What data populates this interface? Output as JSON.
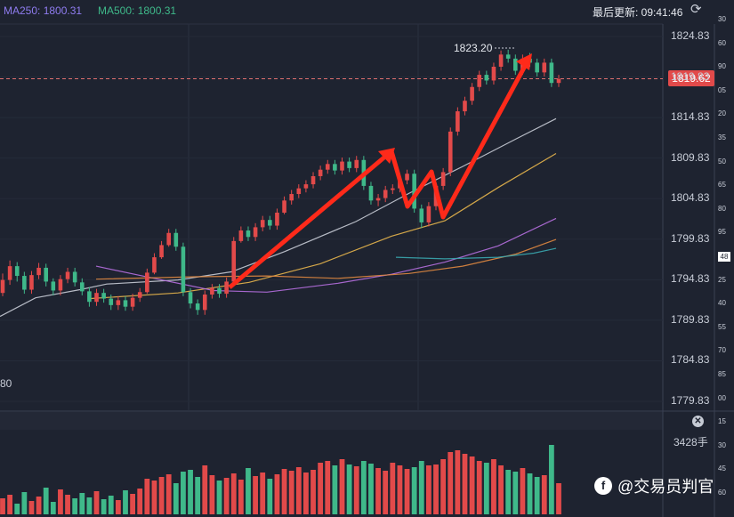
{
  "header": {
    "ma250_label": "MA250: 1800.31",
    "ma500_label": "MA500: 1800.31",
    "update_label": "最后更新: 09:41:46"
  },
  "current_price": "1819.62",
  "peak_annotation": "1823.20",
  "left_label": "80",
  "volume_max_label": "3428手",
  "watermark": "@交易员判官",
  "far_axis_labels": [
    "30",
    "60",
    "90",
    "05",
    "20",
    "35",
    "50",
    "65",
    "80",
    "95",
    "48",
    "25",
    "40",
    "55",
    "70",
    "85",
    "00",
    "15",
    "30",
    "45",
    "60"
  ],
  "colors": {
    "background": "#1e2330",
    "up": "#e24a4a",
    "down": "#3fb98a",
    "ma_white": "#c8ccd6",
    "ma_yellow": "#e8b64c",
    "ma_purple": "#b66fe0",
    "ma_orange": "#e08840",
    "ma_teal": "#3aa8b0",
    "arrow": "#ff2a1a"
  },
  "chart_data": {
    "type": "candlestick",
    "y_ticks": [
      "1824.83",
      "1819.83",
      "1814.83",
      "1809.83",
      "1804.83",
      "1799.83",
      "1794.83",
      "1789.83",
      "1784.83",
      "1779.83"
    ],
    "ylim": [
      1777.8,
      1829.1
    ],
    "candles": [
      [
        1793.2,
        1794.8,
        1792.8,
        1795.6
      ],
      [
        1794.8,
        1796.5,
        1794.2,
        1797.2
      ],
      [
        1796.5,
        1795.3,
        1794.6,
        1797.0
      ],
      [
        1795.3,
        1793.6,
        1793.1,
        1795.8
      ],
      [
        1793.6,
        1795.4,
        1793.1,
        1795.9
      ],
      [
        1795.4,
        1796.3,
        1794.9,
        1796.9
      ],
      [
        1796.3,
        1794.6,
        1794.0,
        1796.8
      ],
      [
        1794.6,
        1793.5,
        1792.9,
        1795.0
      ],
      [
        1793.5,
        1794.9,
        1792.9,
        1795.4
      ],
      [
        1794.9,
        1795.8,
        1794.4,
        1796.3
      ],
      [
        1795.8,
        1794.5,
        1794.0,
        1796.3
      ],
      [
        1794.5,
        1793.4,
        1792.9,
        1795.0
      ],
      [
        1793.4,
        1792.1,
        1791.5,
        1793.9
      ],
      [
        1792.1,
        1793.2,
        1791.6,
        1793.7
      ],
      [
        1793.2,
        1792.5,
        1792.0,
        1793.7
      ],
      [
        1792.5,
        1791.7,
        1791.1,
        1793.0
      ],
      [
        1791.7,
        1792.3,
        1791.1,
        1792.8
      ],
      [
        1792.3,
        1791.5,
        1791.0,
        1792.8
      ],
      [
        1791.5,
        1792.6,
        1791.0,
        1793.1
      ],
      [
        1792.6,
        1793.3,
        1792.1,
        1793.8
      ],
      [
        1793.3,
        1795.7,
        1793.1,
        1796.2
      ],
      [
        1795.7,
        1797.6,
        1795.5,
        1798.1
      ],
      [
        1797.6,
        1799.1,
        1797.4,
        1799.6
      ],
      [
        1799.1,
        1800.6,
        1798.9,
        1801.1
      ],
      [
        1800.6,
        1798.9,
        1798.4,
        1801.1
      ],
      [
        1798.9,
        1793.3,
        1792.8,
        1799.4
      ],
      [
        1793.3,
        1791.9,
        1791.3,
        1793.8
      ],
      [
        1791.9,
        1791.1,
        1790.5,
        1792.4
      ],
      [
        1791.1,
        1793.0,
        1790.5,
        1793.5
      ],
      [
        1793.0,
        1793.8,
        1792.5,
        1794.3
      ],
      [
        1793.8,
        1793.1,
        1792.6,
        1794.3
      ],
      [
        1793.1,
        1794.6,
        1792.6,
        1795.1
      ],
      [
        1794.6,
        1799.6,
        1794.4,
        1800.1
      ],
      [
        1799.6,
        1800.9,
        1799.4,
        1801.4
      ],
      [
        1800.9,
        1800.1,
        1799.6,
        1801.4
      ],
      [
        1800.1,
        1801.3,
        1799.6,
        1801.8
      ],
      [
        1801.3,
        1802.2,
        1800.8,
        1802.7
      ],
      [
        1802.2,
        1801.5,
        1801.0,
        1802.7
      ],
      [
        1801.5,
        1803.1,
        1801.0,
        1803.6
      ],
      [
        1803.1,
        1804.6,
        1802.9,
        1805.1
      ],
      [
        1804.6,
        1805.4,
        1804.1,
        1805.9
      ],
      [
        1805.4,
        1806.1,
        1804.9,
        1806.6
      ],
      [
        1806.1,
        1806.6,
        1805.6,
        1807.1
      ],
      [
        1806.6,
        1807.6,
        1806.1,
        1808.1
      ],
      [
        1807.6,
        1808.4,
        1807.1,
        1808.9
      ],
      [
        1808.4,
        1809.1,
        1807.9,
        1809.6
      ],
      [
        1809.1,
        1808.3,
        1807.8,
        1809.6
      ],
      [
        1808.3,
        1809.4,
        1807.8,
        1809.9
      ],
      [
        1809.4,
        1808.6,
        1808.1,
        1809.9
      ],
      [
        1808.6,
        1809.6,
        1808.1,
        1810.1
      ],
      [
        1809.6,
        1806.4,
        1805.9,
        1810.1
      ],
      [
        1806.4,
        1804.6,
        1804.1,
        1806.9
      ],
      [
        1804.6,
        1804.9,
        1803.9,
        1805.4
      ],
      [
        1804.9,
        1805.9,
        1804.4,
        1806.4
      ],
      [
        1805.9,
        1806.1,
        1805.4,
        1806.6
      ],
      [
        1806.1,
        1807.1,
        1805.6,
        1807.6
      ],
      [
        1807.1,
        1807.9,
        1806.6,
        1808.4
      ],
      [
        1807.9,
        1803.6,
        1803.1,
        1808.4
      ],
      [
        1803.6,
        1801.9,
        1801.2,
        1804.1
      ],
      [
        1801.9,
        1803.9,
        1801.4,
        1804.4
      ],
      [
        1803.9,
        1806.4,
        1803.4,
        1806.9
      ],
      [
        1806.4,
        1808.1,
        1805.9,
        1808.6
      ],
      [
        1808.1,
        1813.1,
        1807.6,
        1813.6
      ],
      [
        1813.1,
        1815.6,
        1812.6,
        1816.1
      ],
      [
        1815.6,
        1816.9,
        1815.1,
        1817.4
      ],
      [
        1816.9,
        1818.6,
        1816.4,
        1819.1
      ],
      [
        1818.6,
        1820.1,
        1818.1,
        1820.6
      ],
      [
        1820.1,
        1819.4,
        1818.9,
        1820.6
      ],
      [
        1819.4,
        1821.1,
        1818.9,
        1821.6
      ],
      [
        1821.1,
        1822.6,
        1820.6,
        1823.1
      ],
      [
        1822.6,
        1822.1,
        1821.6,
        1823.2
      ],
      [
        1822.1,
        1820.6,
        1820.1,
        1822.6
      ],
      [
        1820.6,
        1822.1,
        1820.1,
        1822.6
      ],
      [
        1822.1,
        1821.6,
        1821.1,
        1822.8
      ],
      [
        1821.6,
        1820.4,
        1819.9,
        1822.1
      ],
      [
        1820.4,
        1821.6,
        1819.9,
        1822.1
      ],
      [
        1821.6,
        1819.1,
        1818.6,
        1822.1
      ],
      [
        1819.1,
        1819.6,
        1818.6,
        1820.1
      ]
    ],
    "ma_lines": [
      {
        "color": "white",
        "values": [
          [
            0,
            1790.3
          ],
          [
            40,
            1792.6
          ],
          [
            90,
            1793.6
          ],
          [
            120,
            1794.3
          ],
          [
            200,
            1794.8
          ],
          [
            260,
            1795.8
          ],
          [
            320,
            1798.3
          ],
          [
            400,
            1802.0
          ],
          [
            460,
            1805.5
          ],
          [
            520,
            1808.8
          ],
          [
            580,
            1812.2
          ],
          [
            625,
            1814.7
          ]
        ]
      },
      {
        "color": "yellow",
        "values": [
          [
            100,
            1792.5
          ],
          [
            200,
            1793.2
          ],
          [
            280,
            1794.5
          ],
          [
            360,
            1796.8
          ],
          [
            440,
            1800.2
          ],
          [
            500,
            1802.1
          ],
          [
            560,
            1806.2
          ],
          [
            625,
            1810.4
          ]
        ]
      },
      {
        "color": "purple",
        "values": [
          [
            108,
            1796.5
          ],
          [
            160,
            1795.3
          ],
          [
            240,
            1793.5
          ],
          [
            300,
            1793.3
          ],
          [
            380,
            1794.4
          ],
          [
            440,
            1795.5
          ],
          [
            500,
            1797.0
          ],
          [
            560,
            1799.0
          ],
          [
            625,
            1802.4
          ]
        ]
      },
      {
        "color": "orange",
        "values": [
          [
            108,
            1794.9
          ],
          [
            220,
            1795.2
          ],
          [
            300,
            1795.3
          ],
          [
            380,
            1795.0
          ],
          [
            460,
            1795.6
          ],
          [
            520,
            1796.5
          ],
          [
            580,
            1798.0
          ],
          [
            625,
            1799.8
          ]
        ]
      },
      {
        "color": "teal",
        "values": [
          [
            445,
            1797.6
          ],
          [
            500,
            1797.4
          ],
          [
            560,
            1797.6
          ],
          [
            600,
            1798.1
          ],
          [
            625,
            1798.7
          ]
        ]
      }
    ],
    "volumes": [
      18,
      22,
      12,
      25,
      15,
      20,
      30,
      14,
      28,
      22,
      18,
      24,
      19,
      26,
      17,
      21,
      16,
      27,
      23,
      29,
      40,
      38,
      42,
      45,
      35,
      48,
      50,
      42,
      55,
      44,
      38,
      41,
      46,
      39,
      52,
      43,
      47,
      40,
      45,
      51,
      49,
      53,
      47,
      50,
      58,
      60,
      55,
      62,
      56,
      54,
      60,
      57,
      52,
      49,
      58,
      55,
      51,
      53,
      60,
      55,
      56,
      62,
      70,
      72,
      68,
      65,
      60,
      58,
      62,
      55,
      50,
      48,
      52,
      46,
      42,
      44,
      78,
      35
    ]
  }
}
